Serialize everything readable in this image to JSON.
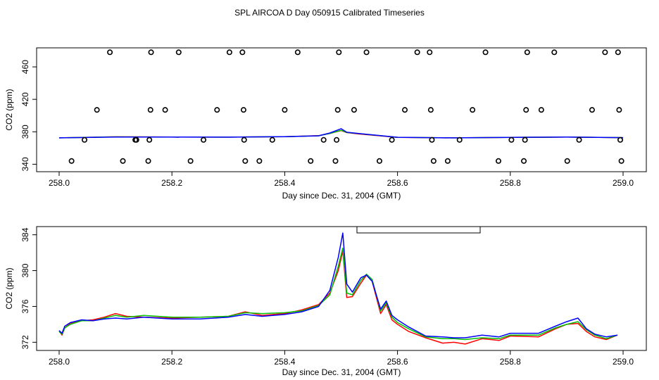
{
  "title": "SPL AIRCOA D  Day 050915  Calibrated Timeseries",
  "colors": {
    "red": "#ff0000",
    "green": "#00c000",
    "blue": "#0000ff",
    "black": "#000000"
  },
  "chart_data": [
    {
      "type": "scatter",
      "title": "",
      "xlabel": "Day since Dec. 31, 2004 (GMT)",
      "ylabel": "CO2 (ppm)",
      "xlim": [
        258.0,
        259.0
      ],
      "ylim": [
        336,
        480
      ],
      "x_ticks": [
        258.0,
        258.2,
        258.4,
        258.6,
        258.8,
        259.0
      ],
      "x_tick_labels": [
        "258.0",
        "258.2",
        "258.4",
        "258.6",
        "258.8",
        "259.0"
      ],
      "y_ticks": [
        340,
        380,
        420,
        460
      ],
      "y_tick_labels": [
        "340",
        "380",
        "420",
        "460"
      ],
      "points": [
        {
          "x": 258.022,
          "y": 344
        },
        {
          "x": 258.045,
          "y": 370
        },
        {
          "x": 258.067,
          "y": 407
        },
        {
          "x": 258.09,
          "y": 478
        },
        {
          "x": 258.113,
          "y": 344
        },
        {
          "x": 258.135,
          "y": 370
        },
        {
          "x": 258.137,
          "y": 370
        },
        {
          "x": 258.158,
          "y": 344
        },
        {
          "x": 258.16,
          "y": 370
        },
        {
          "x": 258.162,
          "y": 407
        },
        {
          "x": 258.163,
          "y": 478
        },
        {
          "x": 258.188,
          "y": 407
        },
        {
          "x": 258.212,
          "y": 478
        },
        {
          "x": 258.233,
          "y": 344
        },
        {
          "x": 258.256,
          "y": 370
        },
        {
          "x": 258.28,
          "y": 407
        },
        {
          "x": 258.302,
          "y": 478
        },
        {
          "x": 258.325,
          "y": 478
        },
        {
          "x": 258.327,
          "y": 407
        },
        {
          "x": 258.328,
          "y": 370
        },
        {
          "x": 258.33,
          "y": 344
        },
        {
          "x": 258.355,
          "y": 344
        },
        {
          "x": 258.378,
          "y": 370
        },
        {
          "x": 258.4,
          "y": 407
        },
        {
          "x": 258.423,
          "y": 478
        },
        {
          "x": 258.446,
          "y": 344
        },
        {
          "x": 258.469,
          "y": 370
        },
        {
          "x": 258.49,
          "y": 344
        },
        {
          "x": 258.492,
          "y": 370
        },
        {
          "x": 258.494,
          "y": 407
        },
        {
          "x": 258.496,
          "y": 478
        },
        {
          "x": 258.523,
          "y": 407
        },
        {
          "x": 258.545,
          "y": 478
        },
        {
          "x": 258.568,
          "y": 344
        },
        {
          "x": 258.59,
          "y": 370
        },
        {
          "x": 258.613,
          "y": 407
        },
        {
          "x": 258.635,
          "y": 478
        },
        {
          "x": 258.657,
          "y": 478
        },
        {
          "x": 258.659,
          "y": 407
        },
        {
          "x": 258.661,
          "y": 370
        },
        {
          "x": 258.664,
          "y": 344
        },
        {
          "x": 258.689,
          "y": 344
        },
        {
          "x": 258.71,
          "y": 370
        },
        {
          "x": 258.733,
          "y": 407
        },
        {
          "x": 258.756,
          "y": 478
        },
        {
          "x": 258.779,
          "y": 344
        },
        {
          "x": 258.802,
          "y": 370
        },
        {
          "x": 258.824,
          "y": 344
        },
        {
          "x": 258.826,
          "y": 370
        },
        {
          "x": 258.828,
          "y": 407
        },
        {
          "x": 258.83,
          "y": 478
        },
        {
          "x": 258.855,
          "y": 407
        },
        {
          "x": 258.878,
          "y": 478
        },
        {
          "x": 258.901,
          "y": 344
        },
        {
          "x": 258.922,
          "y": 370
        },
        {
          "x": 258.945,
          "y": 407
        },
        {
          "x": 258.968,
          "y": 478
        },
        {
          "x": 258.991,
          "y": 478
        },
        {
          "x": 258.993,
          "y": 407
        },
        {
          "x": 258.995,
          "y": 370
        },
        {
          "x": 258.997,
          "y": 344
        }
      ],
      "series": [
        {
          "name": "red",
          "color": "#ff0000",
          "x": [
            258.0,
            258.1,
            258.2,
            258.3,
            258.4,
            258.46,
            258.48,
            258.5,
            258.51,
            258.53,
            258.6,
            258.7,
            258.8,
            258.9,
            259.0
          ],
          "y": [
            372.5,
            373.8,
            373.5,
            373.4,
            374.0,
            375.2,
            378.0,
            381.5,
            379.0,
            377.5,
            373.0,
            372.5,
            373.0,
            373.5,
            372.8
          ]
        },
        {
          "name": "green",
          "color": "#00c000",
          "x": [
            258.0,
            258.1,
            258.2,
            258.3,
            258.4,
            258.46,
            258.48,
            258.5,
            258.51,
            258.53,
            258.6,
            258.7,
            258.8,
            258.9,
            259.0
          ],
          "y": [
            372.5,
            373.7,
            373.5,
            373.4,
            374.0,
            375.0,
            378.0,
            381.8,
            379.2,
            377.8,
            373.2,
            372.5,
            373.0,
            373.5,
            372.8
          ]
        },
        {
          "name": "blue",
          "color": "#0000ff",
          "x": [
            258.0,
            258.1,
            258.2,
            258.3,
            258.4,
            258.46,
            258.48,
            258.5,
            258.51,
            258.53,
            258.6,
            258.7,
            258.8,
            258.9,
            259.0
          ],
          "y": [
            372.5,
            373.6,
            373.5,
            373.4,
            374.0,
            375.0,
            378.5,
            383.8,
            379.5,
            378.0,
            373.2,
            372.5,
            373.0,
            373.6,
            372.8
          ]
        }
      ]
    },
    {
      "type": "line",
      "title": "",
      "xlabel": "Day since Dec. 31, 2004 (GMT)",
      "ylabel": "CO2 (ppm)",
      "xlim": [
        258.0,
        259.0
      ],
      "ylim": [
        371.4,
        384.6
      ],
      "x_ticks": [
        258.0,
        258.2,
        258.4,
        258.6,
        258.8,
        259.0
      ],
      "x_tick_labels": [
        "258.0",
        "258.2",
        "258.4",
        "258.6",
        "258.8",
        "259.0"
      ],
      "y_ticks": [
        372,
        376,
        380,
        384
      ],
      "y_tick_labels": [
        "372",
        "376",
        "380",
        "384"
      ],
      "legend": "top-center",
      "legend_entries": [],
      "series": [
        {
          "name": "red",
          "color": "#ff0000",
          "x": [
            258.0,
            258.005,
            258.01,
            258.02,
            258.04,
            258.06,
            258.08,
            258.1,
            258.12,
            258.15,
            258.2,
            258.25,
            258.3,
            258.33,
            258.36,
            258.4,
            258.43,
            258.46,
            258.48,
            258.495,
            258.503,
            258.51,
            258.52,
            258.535,
            258.545,
            258.555,
            258.57,
            258.58,
            258.59,
            258.6,
            258.62,
            258.65,
            258.68,
            258.7,
            258.72,
            258.75,
            258.78,
            258.8,
            258.85,
            258.88,
            258.9,
            258.92,
            258.935,
            258.95,
            258.97,
            258.99
          ],
          "y": [
            373.3,
            372.8,
            373.6,
            374.1,
            374.4,
            374.5,
            374.8,
            375.2,
            374.9,
            374.8,
            374.7,
            374.8,
            374.9,
            375.4,
            375.0,
            375.2,
            375.6,
            376.2,
            377.5,
            380.0,
            382.2,
            377.0,
            377.1,
            378.6,
            379.5,
            378.8,
            375.2,
            376.2,
            374.5,
            374.0,
            373.2,
            372.5,
            371.9,
            372.0,
            371.8,
            372.4,
            372.2,
            372.7,
            372.6,
            373.5,
            374.0,
            374.1,
            373.2,
            372.6,
            372.3,
            372.8
          ]
        },
        {
          "name": "green",
          "color": "#00c000",
          "x": [
            258.0,
            258.005,
            258.01,
            258.02,
            258.04,
            258.06,
            258.08,
            258.1,
            258.12,
            258.15,
            258.2,
            258.25,
            258.3,
            258.33,
            258.36,
            258.4,
            258.43,
            258.46,
            258.48,
            258.495,
            258.503,
            258.51,
            258.52,
            258.535,
            258.545,
            258.555,
            258.57,
            258.58,
            258.59,
            258.6,
            258.62,
            258.65,
            258.68,
            258.7,
            258.72,
            258.75,
            258.78,
            258.8,
            258.85,
            258.88,
            258.9,
            258.92,
            258.935,
            258.95,
            258.97,
            258.99
          ],
          "y": [
            373.2,
            372.9,
            373.6,
            374.0,
            374.4,
            374.4,
            374.7,
            375.0,
            374.8,
            375.0,
            374.8,
            374.8,
            374.9,
            375.3,
            375.2,
            375.3,
            375.5,
            376.1,
            377.3,
            380.5,
            382.5,
            377.5,
            377.3,
            378.9,
            379.6,
            379.0,
            375.5,
            376.4,
            374.8,
            374.2,
            373.5,
            372.6,
            372.4,
            372.4,
            372.3,
            372.5,
            372.4,
            372.8,
            372.8,
            373.6,
            374.0,
            374.3,
            373.4,
            372.8,
            372.4,
            372.8
          ]
        },
        {
          "name": "blue",
          "color": "#0000ff",
          "x": [
            258.0,
            258.005,
            258.01,
            258.02,
            258.04,
            258.06,
            258.08,
            258.1,
            258.12,
            258.15,
            258.2,
            258.25,
            258.3,
            258.33,
            258.36,
            258.4,
            258.43,
            258.46,
            258.48,
            258.495,
            258.503,
            258.51,
            258.52,
            258.535,
            258.545,
            258.555,
            258.57,
            258.58,
            258.59,
            258.6,
            258.62,
            258.65,
            258.68,
            258.7,
            258.72,
            258.75,
            258.78,
            258.8,
            258.85,
            258.88,
            258.9,
            258.92,
            258.935,
            258.95,
            258.97,
            258.99
          ],
          "y": [
            373.3,
            373.0,
            373.8,
            374.2,
            374.5,
            374.4,
            374.6,
            374.7,
            374.6,
            374.8,
            374.6,
            374.6,
            374.8,
            375.1,
            374.9,
            375.1,
            375.4,
            376.0,
            377.8,
            381.5,
            384.2,
            378.5,
            377.6,
            379.2,
            379.5,
            378.8,
            375.7,
            376.6,
            375.0,
            374.5,
            373.7,
            372.7,
            372.6,
            372.5,
            372.5,
            372.8,
            372.6,
            373.0,
            373.0,
            373.8,
            374.3,
            374.7,
            373.5,
            372.9,
            372.6,
            372.8
          ]
        }
      ]
    }
  ]
}
